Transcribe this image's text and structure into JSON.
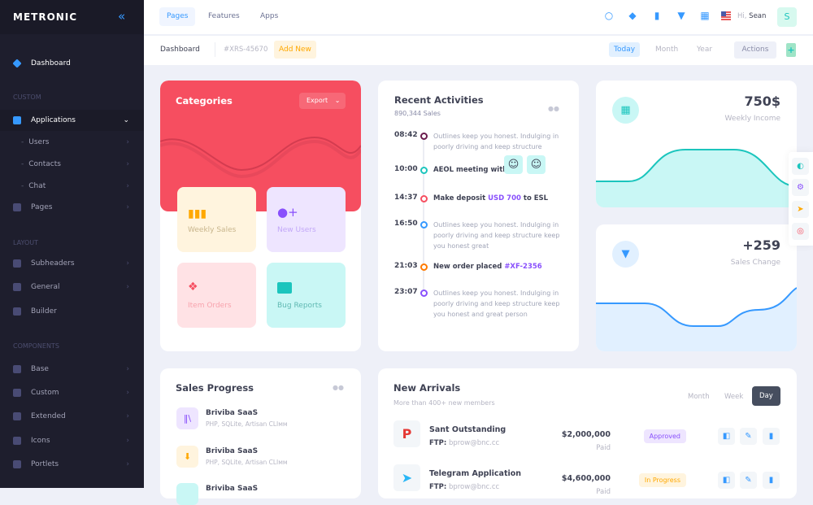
{
  "sidebar": {
    "brand": "METRONIC",
    "dashboard": "Dashboard",
    "sections": [
      "CUSTOM",
      "LAYOUT",
      "COMPONENTS"
    ],
    "items": [
      {
        "label": "Applications",
        "icon": "apps-icon"
      },
      {
        "label": "Users"
      },
      {
        "label": "Contacts"
      },
      {
        "label": "Chat"
      },
      {
        "label": "Pages",
        "icon": "pages-icon"
      },
      {
        "label": "Subheaders"
      },
      {
        "label": "General"
      },
      {
        "label": "Builder"
      },
      {
        "label": "Base"
      },
      {
        "label": "Custom"
      },
      {
        "label": "Extended"
      },
      {
        "label": "Icons"
      },
      {
        "label": "Portlets"
      }
    ]
  },
  "header": {
    "tabs": [
      "Pages",
      "Features",
      "Apps"
    ],
    "greeting": "Hi,",
    "user": "Sean",
    "avatar": "S"
  },
  "subheader": {
    "title": "Dashboard",
    "code": "#XRS-45670",
    "add": "Add New",
    "ranges": [
      "Today",
      "Month",
      "Year"
    ],
    "actions": "Actions",
    "plus": "+"
  },
  "categories": {
    "title": "Categories",
    "export": "Export",
    "tiles": [
      "Weekly Sales",
      "New Users",
      "Item Orders",
      "Bug Reports"
    ]
  },
  "activities": {
    "title": "Recent Activities",
    "subtitle": "890,344 Sales",
    "items": [
      {
        "time": "08:42",
        "color": "#6a1b4d",
        "text": "Outlines keep you honest. Indulging in poorly driving and keep structure"
      },
      {
        "time": "10:00",
        "color": "#1bc5bd",
        "text": "AEOL meeting with"
      },
      {
        "time": "14:37",
        "color": "#f64e60",
        "text": "Make deposit ",
        "hl": "USD 700",
        "tail": " to ESL"
      },
      {
        "time": "16:50",
        "color": "#3699ff",
        "text": "Outlines keep you honest. Indulging in poorly driving and keep structure keep you honest great"
      },
      {
        "time": "21:03",
        "color": "#ff7a00",
        "text": "New order placed ",
        "hl": "#XF-2356"
      },
      {
        "time": "23:07",
        "color": "#8950fc",
        "text": "Outlines keep you honest. Indulging in poorly driving and keep structure keep you honest and great person"
      }
    ]
  },
  "stats": [
    {
      "value": "750$",
      "label": "Weekly Income",
      "color": "#1bc5bd"
    },
    {
      "value": "+259",
      "label": "Sales Change",
      "color": "#3699ff"
    }
  ],
  "sales_progress": {
    "title": "Sales Progress",
    "items": [
      {
        "name": "Briviba SaaS",
        "desc": "PHP, SQLite, Artisan CLIмм"
      },
      {
        "name": "Briviba SaaS",
        "desc": "PHP, SQLite, Artisan CLIмм"
      },
      {
        "name": "Briviba SaaS"
      }
    ]
  },
  "arrivals": {
    "title": "New Arrivals",
    "subtitle": "More than 400+ new members",
    "toggles": [
      "Month",
      "Week",
      "Day"
    ],
    "active": "Day",
    "rows": [
      {
        "name": "Sant Outstanding",
        "ftp_label": "FTP:",
        "ftp": "bprow@bnc.cc",
        "amount": "$2,000,000",
        "paid": "Paid",
        "status": "Approved"
      },
      {
        "name": "Telegram Application",
        "ftp_label": "FTP:",
        "ftp": "bprow@bnc.cc",
        "amount": "$4,600,000",
        "paid": "Paid",
        "status": "In Progress"
      }
    ]
  }
}
